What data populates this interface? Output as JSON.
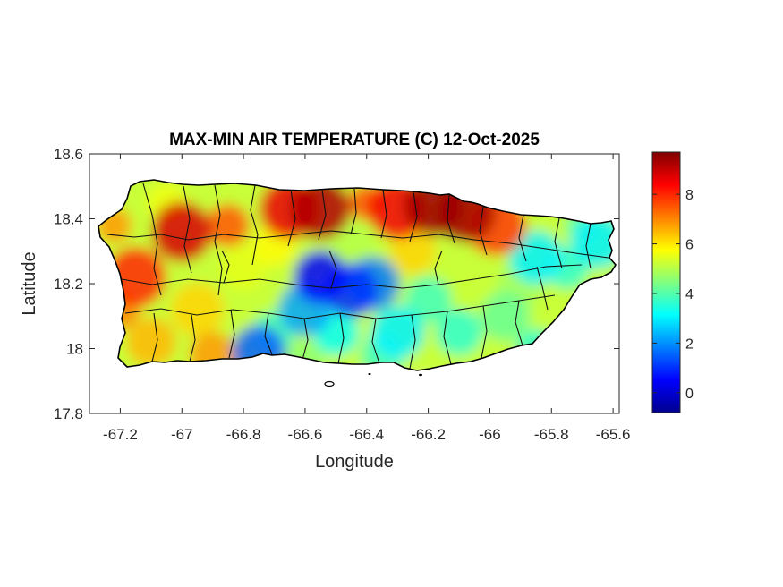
{
  "chart_data": {
    "type": "heatmap",
    "title": "MAX-MIN AIR TEMPERATURE (C) 12-Oct-2025",
    "xlabel": "Longitude",
    "ylabel": "Latitude",
    "xlim": [
      -67.3,
      -65.58
    ],
    "ylim": [
      17.8,
      18.6
    ],
    "xticks": [
      -67.2,
      -67,
      -66.8,
      -66.6,
      -66.4,
      -66.2,
      -66,
      -65.8,
      -65.6
    ],
    "xtick_labels": [
      "-67.2",
      "-67",
      "-66.8",
      "-66.6",
      "-66.4",
      "-66.2",
      "-66",
      "-65.8",
      "-65.6"
    ],
    "yticks": [
      17.8,
      18,
      18.2,
      18.4,
      18.6
    ],
    "ytick_labels": [
      "17.8",
      "18",
      "18.2",
      "18.4",
      "18.6"
    ],
    "colormap": "jet",
    "colorbar": {
      "range": [
        -0.8,
        9.7
      ],
      "ticks": [
        0,
        2,
        4,
        6,
        8
      ],
      "tick_labels": [
        "0",
        "2",
        "4",
        "6",
        "8"
      ]
    },
    "grid": false,
    "region": "Puerto Rico",
    "hotspots": [
      {
        "lon": -66.55,
        "lat": 18.43,
        "value": 9.2
      },
      {
        "lon": -66.18,
        "lat": 18.44,
        "value": 9.4
      },
      {
        "lon": -66.08,
        "lat": 18.42,
        "value": 9.3
      },
      {
        "lon": -67.0,
        "lat": 18.36,
        "value": 8.8
      },
      {
        "lon": -66.65,
        "lat": 18.43,
        "value": 8.6
      },
      {
        "lon": -67.15,
        "lat": 18.22,
        "value": 8.0
      },
      {
        "lon": -66.3,
        "lat": 18.43,
        "value": 8.5
      },
      {
        "lon": -65.98,
        "lat": 18.38,
        "value": 7.8
      }
    ],
    "coldspots": [
      {
        "lon": -66.55,
        "lat": 18.22,
        "value": 0.5
      },
      {
        "lon": -66.45,
        "lat": 18.18,
        "value": 1.0
      },
      {
        "lon": -66.75,
        "lat": 17.99,
        "value": 1.5
      },
      {
        "lon": -66.38,
        "lat": 18.2,
        "value": 1.8
      },
      {
        "lon": -66.6,
        "lat": 18.12,
        "value": 2.2
      },
      {
        "lon": -66.3,
        "lat": 18.05,
        "value": 3.0
      },
      {
        "lon": -65.85,
        "lat": 18.28,
        "value": 3.0
      },
      {
        "lon": -65.65,
        "lat": 18.33,
        "value": 3.0
      }
    ]
  }
}
